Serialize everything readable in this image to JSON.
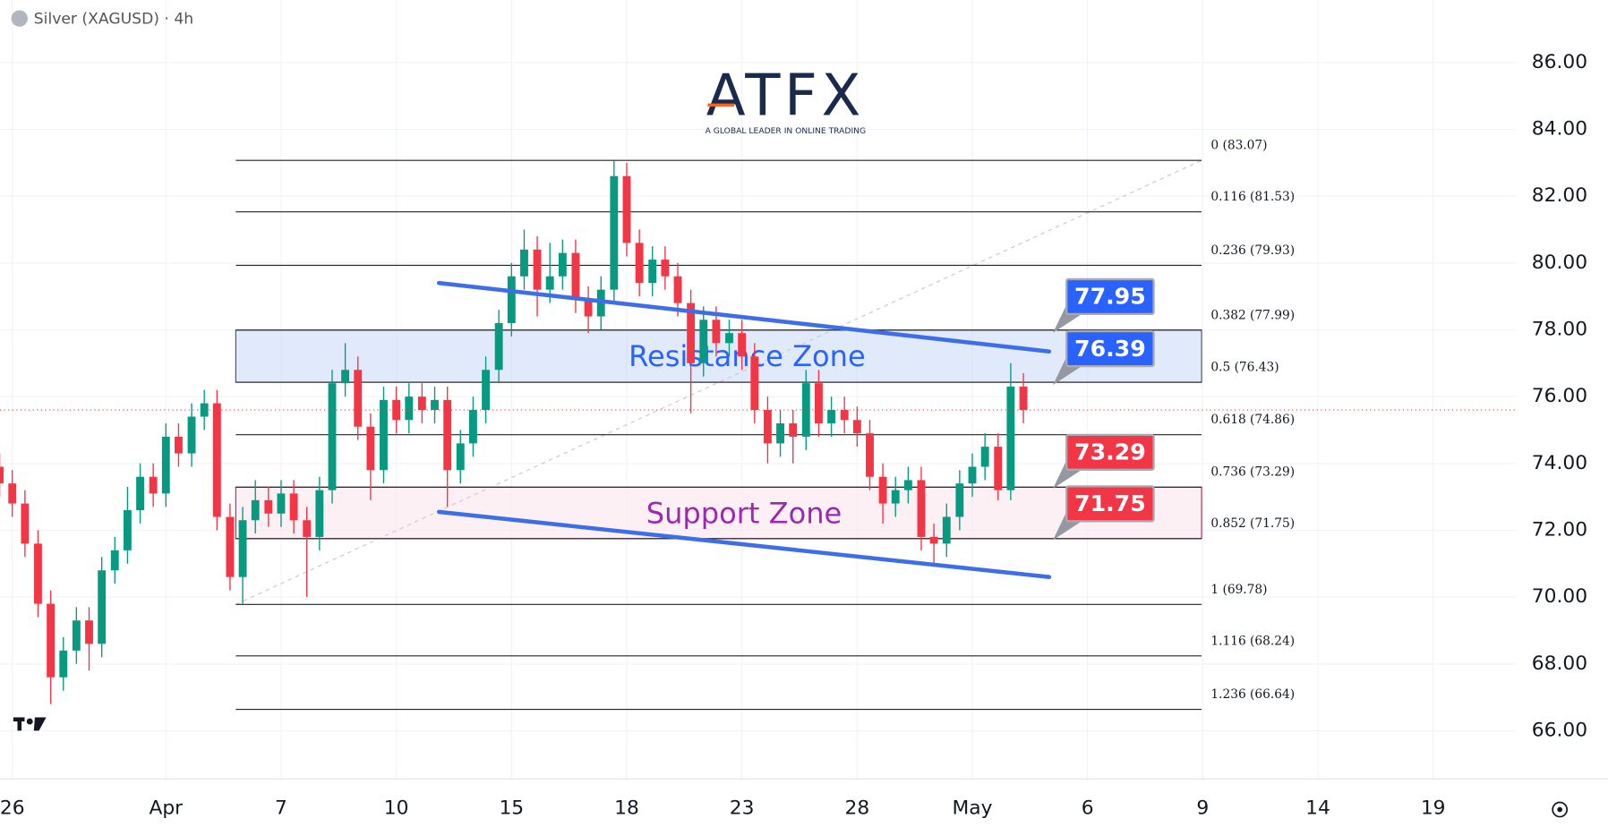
{
  "chart_data": {
    "type": "candlestick",
    "title": "Silver (XAGUSD) · 4h",
    "watermark": {
      "brand": "ATFX",
      "tagline": "A GLOBAL LEADER IN ONLINE TRADING"
    },
    "colors": {
      "up": "#089981",
      "down": "#f23645"
    },
    "xlim": [
      -0.32,
      39.15
    ],
    "ylim": [
      64.56,
      87.87
    ],
    "grid": true,
    "xticks": [
      {
        "value": 0,
        "label": "26"
      },
      {
        "value": 4,
        "label": "Apr"
      },
      {
        "value": 7,
        "label": "7"
      },
      {
        "value": 10,
        "label": "10"
      },
      {
        "value": 13,
        "label": "15"
      },
      {
        "value": 16,
        "label": "18"
      },
      {
        "value": 19,
        "label": "23"
      },
      {
        "value": 22,
        "label": "28"
      },
      {
        "value": 25,
        "label": "May"
      },
      {
        "value": 28,
        "label": "6"
      },
      {
        "value": 31,
        "label": "9"
      },
      {
        "value": 34,
        "label": "14"
      },
      {
        "value": 37,
        "label": "19"
      }
    ],
    "yticks": [
      {
        "value": 66,
        "label": "66.00"
      },
      {
        "value": 68,
        "label": "68.00"
      },
      {
        "value": 70,
        "label": "70.00"
      },
      {
        "value": 72,
        "label": "72.00"
      },
      {
        "value": 74,
        "label": "74.00"
      },
      {
        "value": 76,
        "label": "76.00"
      },
      {
        "value": 78,
        "label": "78.00"
      },
      {
        "value": 80,
        "label": "80.00"
      },
      {
        "value": 82,
        "label": "82.00"
      },
      {
        "value": 84,
        "label": "84.00"
      },
      {
        "value": 86,
        "label": "86.00"
      }
    ],
    "candles": {
      "x": [
        -0.33,
        0,
        0.33,
        0.67,
        1,
        1.33,
        1.67,
        2,
        2.33,
        2.67,
        3,
        3.33,
        3.67,
        4,
        4.33,
        4.67,
        5,
        5.33,
        5.67,
        6,
        6.33,
        6.67,
        7,
        7.33,
        7.67,
        8,
        8.33,
        8.67,
        9,
        9.33,
        9.67,
        10,
        10.33,
        10.67,
        11,
        11.33,
        11.67,
        12,
        12.33,
        12.67,
        13,
        13.33,
        13.67,
        14,
        14.33,
        14.67,
        15,
        15.33,
        15.67,
        16,
        16.33,
        16.67,
        17,
        17.33,
        17.67,
        18,
        18.33,
        18.67,
        19,
        19.33,
        19.67,
        20,
        20.33,
        20.67,
        21,
        21.33,
        21.67,
        22,
        22.33,
        22.67,
        23,
        23.33,
        23.67,
        24,
        24.33,
        24.67,
        25,
        25.33,
        25.67,
        26,
        26.33
      ],
      "open": [
        73.9,
        73.4,
        72.8,
        71.6,
        69.8,
        67.6,
        68.4,
        69.3,
        68.6,
        70.8,
        71.4,
        72.6,
        73.6,
        73.1,
        74.8,
        74.3,
        75.4,
        75.8,
        72.4,
        70.6,
        72.3,
        72.9,
        72.5,
        73.1,
        72.3,
        71.8,
        73.2,
        76.4,
        76.8,
        75.1,
        73.8,
        75.9,
        75.3,
        76.0,
        75.6,
        75.9,
        73.8,
        74.6,
        75.6,
        76.8,
        78.2,
        79.6,
        80.4,
        79.2,
        79.6,
        80.3,
        78.9,
        78.4,
        79.2,
        82.6,
        80.6,
        79.4,
        80.1,
        79.6,
        78.8,
        77.0,
        78.3,
        77.6,
        77.9,
        77.2,
        75.6,
        74.6,
        75.2,
        74.8,
        76.4,
        75.2,
        75.6,
        75.3,
        74.9,
        73.6,
        72.8,
        73.2,
        73.5,
        71.8,
        71.6,
        72.4,
        73.4,
        73.9,
        74.5,
        73.2,
        76.3
      ],
      "high": [
        74.3,
        73.8,
        73.2,
        72.0,
        70.2,
        68.8,
        69.7,
        69.7,
        71.2,
        71.8,
        73.3,
        74.0,
        74.0,
        75.2,
        75.2,
        75.8,
        76.2,
        76.2,
        72.8,
        72.7,
        73.5,
        73.3,
        73.5,
        73.5,
        72.7,
        73.6,
        76.8,
        77.6,
        77.2,
        75.5,
        76.3,
        76.3,
        76.4,
        76.4,
        76.3,
        76.3,
        75.0,
        76.0,
        77.2,
        78.6,
        80.0,
        81.0,
        80.8,
        80.6,
        80.7,
        80.7,
        79.3,
        79.6,
        83.07,
        83.0,
        81.0,
        80.5,
        80.5,
        80.0,
        79.2,
        78.7,
        78.7,
        78.3,
        78.3,
        77.6,
        76.0,
        75.6,
        75.6,
        76.8,
        76.8,
        76.0,
        76.0,
        75.7,
        75.3,
        74.0,
        73.6,
        73.9,
        73.9,
        72.2,
        72.8,
        73.8,
        74.3,
        74.9,
        74.9,
        77.0,
        76.7
      ],
      "low": [
        73.0,
        72.4,
        71.2,
        69.4,
        66.8,
        67.2,
        68.0,
        67.8,
        68.2,
        70.4,
        71.0,
        72.2,
        72.7,
        72.7,
        73.9,
        73.9,
        75.0,
        72.0,
        70.2,
        69.8,
        71.9,
        72.1,
        72.1,
        71.9,
        70.0,
        71.4,
        72.8,
        76.0,
        74.7,
        72.9,
        73.4,
        74.9,
        74.9,
        75.2,
        75.2,
        72.7,
        73.4,
        74.2,
        75.2,
        76.4,
        77.8,
        79.2,
        78.4,
        78.8,
        79.2,
        78.5,
        77.9,
        78.0,
        78.8,
        80.2,
        79.0,
        79.0,
        79.2,
        78.4,
        75.5,
        76.6,
        77.2,
        77.2,
        76.8,
        75.2,
        74.0,
        74.2,
        74.0,
        74.4,
        74.8,
        74.8,
        74.9,
        74.5,
        73.2,
        72.2,
        72.4,
        72.8,
        71.4,
        71.0,
        71.2,
        72.0,
        73.0,
        73.5,
        72.9,
        72.9,
        75.2
      ],
      "close": [
        73.4,
        72.8,
        71.6,
        69.8,
        67.6,
        68.4,
        69.3,
        68.6,
        70.8,
        71.4,
        72.6,
        73.6,
        73.1,
        74.8,
        74.3,
        75.4,
        75.8,
        72.4,
        70.6,
        72.3,
        72.9,
        72.5,
        73.1,
        72.3,
        71.8,
        73.2,
        76.4,
        76.8,
        75.1,
        73.8,
        75.9,
        75.3,
        76.0,
        75.6,
        75.9,
        73.8,
        74.6,
        75.6,
        76.8,
        78.2,
        79.6,
        80.4,
        79.2,
        79.6,
        80.3,
        78.9,
        78.4,
        79.2,
        82.6,
        80.6,
        79.4,
        80.1,
        79.6,
        78.8,
        77.0,
        78.3,
        77.6,
        77.9,
        77.2,
        75.6,
        74.6,
        75.2,
        74.8,
        76.4,
        75.2,
        75.6,
        75.3,
        74.9,
        73.6,
        72.8,
        73.2,
        73.5,
        71.8,
        71.6,
        72.4,
        73.4,
        73.9,
        74.5,
        73.2,
        76.3,
        75.6
      ]
    },
    "fibonacci": {
      "x": [
        5.82,
        30.97
      ],
      "levels": [
        {
          "value": 83.07,
          "label": "0 (83.07)"
        },
        {
          "value": 81.53,
          "label": "0.116 (81.53)"
        },
        {
          "value": 79.93,
          "label": "0.236 (79.93)"
        },
        {
          "value": 77.99,
          "label": "0.382 (77.99)"
        },
        {
          "value": 76.43,
          "label": "0.5 (76.43)"
        },
        {
          "value": 74.86,
          "label": "0.618 (74.86)"
        },
        {
          "value": 73.29,
          "label": "0.736 (73.29)"
        },
        {
          "value": 71.75,
          "label": "0.852 (71.75)"
        },
        {
          "value": 69.78,
          "label": "1 (69.78)"
        },
        {
          "value": 68.24,
          "label": "1.116 (68.24)"
        },
        {
          "value": 66.64,
          "label": "1.236 (66.64)"
        }
      ]
    },
    "zones": [
      {
        "label": "Resistance Zone",
        "range": [
          76.43,
          77.99
        ],
        "color": "#2962ff"
      },
      {
        "label": "Support Zone",
        "range": [
          71.75,
          73.29
        ],
        "color": "#9c27b0"
      }
    ],
    "trendlines": [
      {
        "x": [
          11.11,
          27.0
        ],
        "y": [
          79.4,
          77.35
        ],
        "color": "#3d6ee8"
      },
      {
        "x": [
          11.11,
          27.0
        ],
        "y": [
          72.55,
          70.6
        ],
        "color": "#3d6ee8"
      }
    ],
    "price_labels": [
      {
        "value": 77.95,
        "color": "#2962ff"
      },
      {
        "value": 76.39,
        "color": "#2962ff"
      },
      {
        "value": 73.29,
        "color": "#f23645"
      },
      {
        "value": 71.75,
        "color": "#f23645"
      }
    ]
  }
}
